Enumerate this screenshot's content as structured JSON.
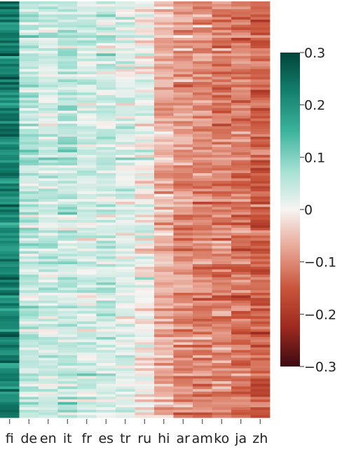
{
  "chart_data": {
    "type": "heatmap",
    "title": "",
    "xlabel": "",
    "ylabel": "",
    "categories": [
      "fi",
      "de",
      "en",
      "it",
      "fr",
      "es",
      "tr",
      "ru",
      "hi",
      "ar",
      "am",
      "ko",
      "ja",
      "zh"
    ],
    "column_means": [
      0.22,
      0.05,
      0.04,
      0.05,
      0.03,
      0.04,
      0.02,
      0.0,
      -0.06,
      -0.09,
      -0.1,
      -0.11,
      -0.12,
      -0.14
    ],
    "row_count": 160,
    "values_note_scale": [
      -0.3,
      0.3
    ],
    "colorbar": {
      "vmin": -0.3,
      "vmax": 0.3,
      "ticks": [
        0.3,
        0.2,
        0.1,
        0,
        -0.1,
        -0.2,
        -0.3
      ],
      "tick_labels": [
        "0.3",
        "0.2",
        "0.1",
        "0",
        "−0.1",
        "−0.2",
        "−0.3"
      ],
      "colormap": [
        "#3b0a12",
        "#9e2a1f",
        "#c9553b",
        "#e8a594",
        "#f7f4f2",
        "#a3e0d3",
        "#3bb39b",
        "#14806e",
        "#00443a"
      ]
    }
  }
}
